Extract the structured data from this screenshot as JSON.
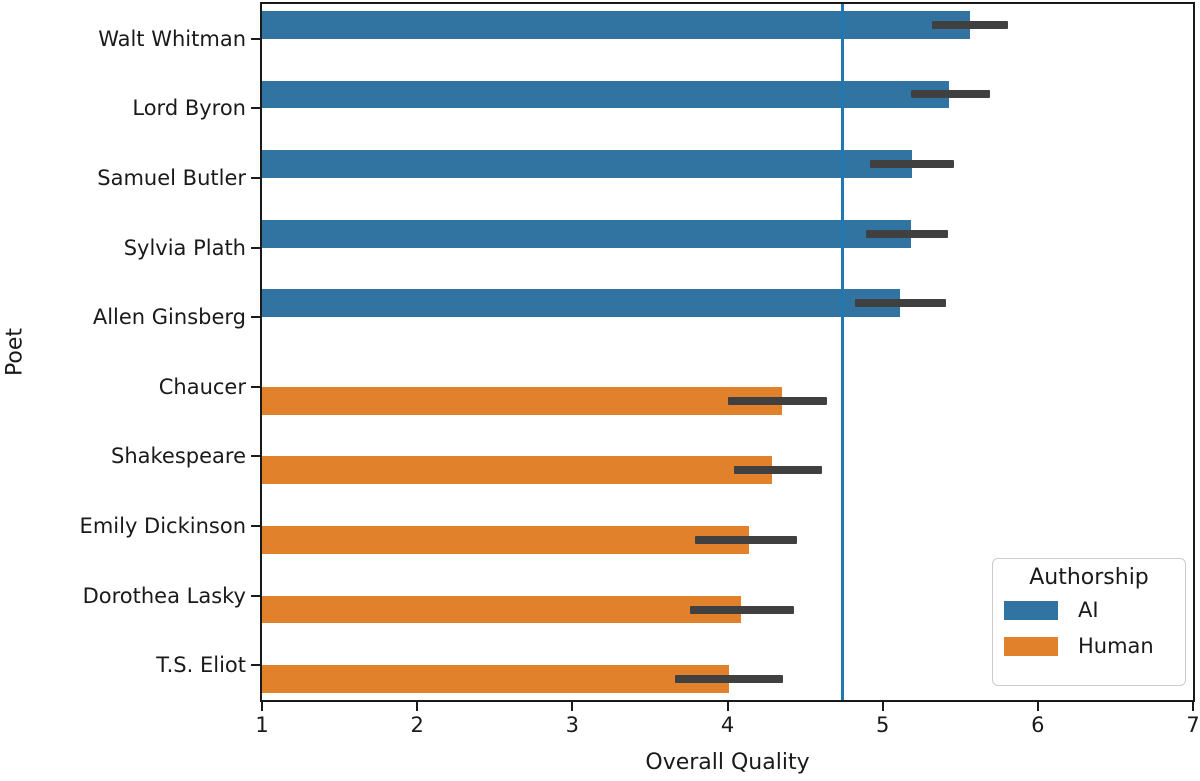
{
  "chart_data": {
    "type": "bar",
    "orientation": "horizontal",
    "xlabel": "Overall Quality",
    "ylabel": "Poet",
    "xlim": [
      1,
      7
    ],
    "x_ticks": [
      1,
      2,
      3,
      4,
      5,
      6,
      7
    ],
    "grid": false,
    "series_key": "Authorship",
    "bars": [
      {
        "poet": "Walt Whitman",
        "authorship": "AI",
        "value": 5.56,
        "ci": [
          5.32,
          5.81
        ]
      },
      {
        "poet": "Lord Byron",
        "authorship": "AI",
        "value": 5.43,
        "ci": [
          5.18,
          5.69
        ]
      },
      {
        "poet": "Samuel Butler",
        "authorship": "AI",
        "value": 5.19,
        "ci": [
          4.92,
          5.46
        ]
      },
      {
        "poet": "Sylvia Plath",
        "authorship": "AI",
        "value": 5.18,
        "ci": [
          4.89,
          5.42
        ]
      },
      {
        "poet": "Allen Ginsberg",
        "authorship": "AI",
        "value": 5.11,
        "ci": [
          4.82,
          5.41
        ]
      },
      {
        "poet": "Chaucer",
        "authorship": "Human",
        "value": 4.35,
        "ci": [
          4.0,
          4.64
        ]
      },
      {
        "poet": "Shakespeare",
        "authorship": "Human",
        "value": 4.29,
        "ci": [
          4.04,
          4.61
        ]
      },
      {
        "poet": "Emily Dickinson",
        "authorship": "Human",
        "value": 4.14,
        "ci": [
          3.79,
          4.45
        ]
      },
      {
        "poet": "Dorothea Lasky",
        "authorship": "Human",
        "value": 4.09,
        "ci": [
          3.76,
          4.43
        ]
      },
      {
        "poet": "T.S. Eliot",
        "authorship": "Human",
        "value": 4.01,
        "ci": [
          3.66,
          4.36
        ]
      }
    ],
    "reference_line": {
      "value": 4.74,
      "color": "#1f77b4"
    },
    "colors": {
      "AI": "#3274a1",
      "Human": "#e1812c",
      "error_bar": "#404040",
      "axis": "#1a1a1a"
    },
    "legend": {
      "title": "Authorship",
      "position": "lower right",
      "entries": [
        {
          "label": "AI",
          "color": "#3274a1"
        },
        {
          "label": "Human",
          "color": "#e1812c"
        }
      ]
    }
  }
}
